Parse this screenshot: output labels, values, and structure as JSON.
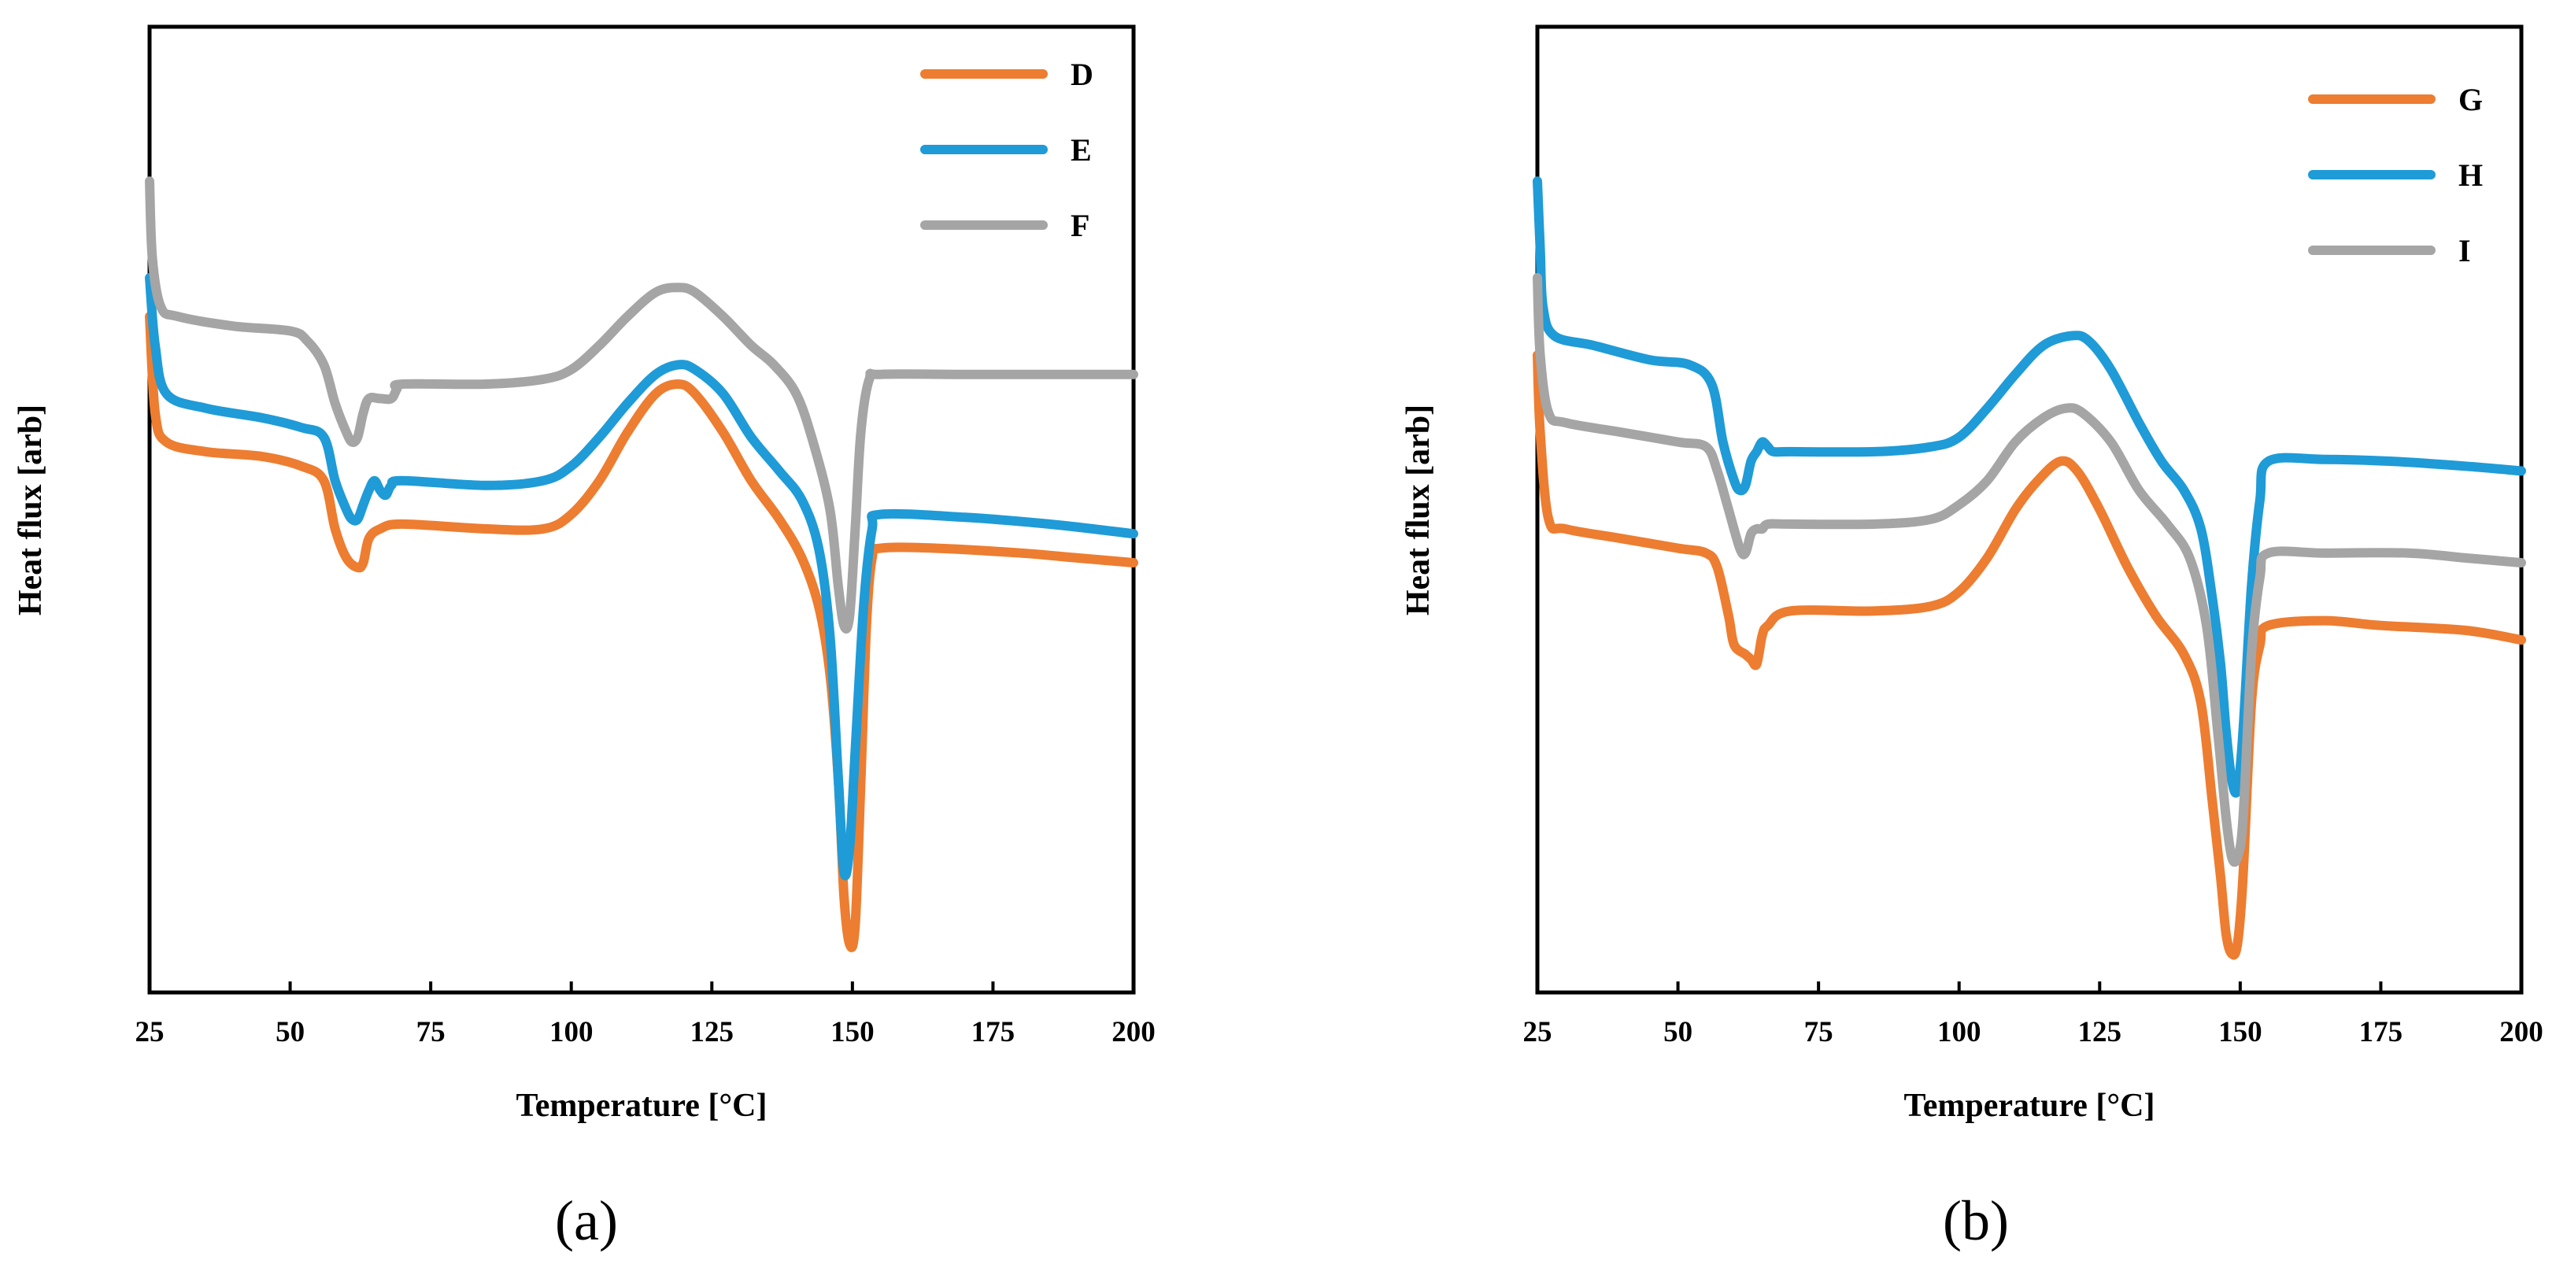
{
  "chart_data": [
    {
      "type": "line",
      "panel_label": "(a)",
      "xlabel": "Temperature [°C]",
      "ylabel": "Heat flux [arb]",
      "xlim": [
        25,
        200
      ],
      "ylim": [
        0,
        100
      ],
      "x_ticks": [
        25,
        50,
        75,
        100,
        125,
        150,
        175,
        200
      ],
      "x_tick_labels": [
        "25",
        "50",
        "75",
        "100",
        "125",
        "150",
        "175",
        "200"
      ],
      "y_ticks_shown": false,
      "grid": false,
      "legend_position": "top-right",
      "series": [
        {
          "name": "D",
          "color": "#ED7D31",
          "points": [
            [
              25,
              70
            ],
            [
              26,
              60
            ],
            [
              28,
              57
            ],
            [
              35,
              56
            ],
            [
              45,
              55.5
            ],
            [
              52,
              54.5
            ],
            [
              56,
              53
            ],
            [
              58,
              48
            ],
            [
              60,
              45
            ],
            [
              62,
              44
            ],
            [
              63,
              44.5
            ],
            [
              64,
              47
            ],
            [
              66,
              48
            ],
            [
              70,
              48.5
            ],
            [
              85,
              48
            ],
            [
              95,
              48
            ],
            [
              100,
              49.5
            ],
            [
              105,
              53
            ],
            [
              110,
              58
            ],
            [
              115,
              62
            ],
            [
              119,
              63
            ],
            [
              122,
              62
            ],
            [
              127,
              58
            ],
            [
              132,
              53
            ],
            [
              137,
              49
            ],
            [
              141,
              45
            ],
            [
              144,
              40
            ],
            [
              146,
              33
            ],
            [
              147.5,
              22
            ],
            [
              148.5,
              10
            ],
            [
              149.5,
              5
            ],
            [
              150.5,
              7
            ],
            [
              151.5,
              22
            ],
            [
              152.5,
              38
            ],
            [
              153.5,
              45
            ],
            [
              155,
              46
            ],
            [
              165,
              46
            ],
            [
              180,
              45.5
            ],
            [
              190,
              45
            ],
            [
              200,
              44.5
            ]
          ]
        },
        {
          "name": "E",
          "color": "#1F9BD7",
          "points": [
            [
              25,
              74
            ],
            [
              26,
              67
            ],
            [
              28,
              62
            ],
            [
              35,
              60.5
            ],
            [
              45,
              59.5
            ],
            [
              52,
              58.5
            ],
            [
              56,
              57.5
            ],
            [
              58,
              53
            ],
            [
              60,
              50
            ],
            [
              61,
              49
            ],
            [
              62,
              49
            ],
            [
              63,
              50.5
            ],
            [
              64,
              52
            ],
            [
              65,
              53
            ],
            [
              66,
              52
            ],
            [
              67,
              51.5
            ],
            [
              68,
              52.5
            ],
            [
              70,
              53
            ],
            [
              85,
              52.5
            ],
            [
              95,
              53
            ],
            [
              100,
              54.5
            ],
            [
              105,
              57.5
            ],
            [
              110,
              61
            ],
            [
              115,
              64
            ],
            [
              119,
              65
            ],
            [
              122,
              64.5
            ],
            [
              127,
              62
            ],
            [
              132,
              57.5
            ],
            [
              137,
              54
            ],
            [
              141,
              51
            ],
            [
              144,
              46
            ],
            [
              146,
              37
            ],
            [
              147.5,
              22
            ],
            [
              148.5,
              12.5
            ],
            [
              149.5,
              15
            ],
            [
              150.5,
              25
            ],
            [
              152,
              40
            ],
            [
              153.5,
              48
            ],
            [
              155,
              49.5
            ],
            [
              170,
              49.2
            ],
            [
              185,
              48.5
            ],
            [
              200,
              47.5
            ]
          ]
        },
        {
          "name": "F",
          "color": "#A5A5A5",
          "points": [
            [
              25,
              84
            ],
            [
              25.5,
              76
            ],
            [
              27,
              71
            ],
            [
              30,
              70
            ],
            [
              40,
              69
            ],
            [
              50,
              68.5
            ],
            [
              53,
              67.5
            ],
            [
              56,
              65
            ],
            [
              58,
              61
            ],
            [
              60,
              58
            ],
            [
              61,
              57
            ],
            [
              62,
              57.5
            ],
            [
              63,
              60
            ],
            [
              64,
              61.5
            ],
            [
              66,
              61.5
            ],
            [
              68,
              61.5
            ],
            [
              69,
              62.5
            ],
            [
              70,
              63
            ],
            [
              85,
              63
            ],
            [
              95,
              63.5
            ],
            [
              100,
              64.5
            ],
            [
              105,
              67
            ],
            [
              110,
              70
            ],
            [
              115,
              72.5
            ],
            [
              119,
              73
            ],
            [
              122,
              72.5
            ],
            [
              127,
              70
            ],
            [
              132,
              67
            ],
            [
              136,
              65
            ],
            [
              140,
              62
            ],
            [
              143,
              57
            ],
            [
              146,
              50
            ],
            [
              147.5,
              42
            ],
            [
              148.5,
              38
            ],
            [
              149.5,
              39
            ],
            [
              150.5,
              48
            ],
            [
              151.5,
              58
            ],
            [
              153,
              63.5
            ],
            [
              155,
              64
            ],
            [
              170,
              64
            ],
            [
              185,
              64
            ],
            [
              200,
              64
            ]
          ]
        }
      ]
    },
    {
      "type": "line",
      "panel_label": "(b)",
      "xlabel": "Temperature [°C]",
      "ylabel": "Heat flux [arb]",
      "xlim": [
        25,
        200
      ],
      "ylim": [
        0,
        100
      ],
      "x_ticks": [
        25,
        50,
        75,
        100,
        125,
        150,
        175,
        200
      ],
      "x_tick_labels": [
        "25",
        "50",
        "75",
        "100",
        "125",
        "150",
        "175",
        "200"
      ],
      "y_ticks_shown": false,
      "grid": false,
      "legend_position": "top-right",
      "series": [
        {
          "name": "G",
          "color": "#ED7D31",
          "points": [
            [
              25,
              66
            ],
            [
              25.5,
              58
            ],
            [
              27,
              49
            ],
            [
              30,
              48
            ],
            [
              40,
              47
            ],
            [
              50,
              46
            ],
            [
              55,
              45.5
            ],
            [
              57,
              44
            ],
            [
              59,
              39
            ],
            [
              60,
              36
            ],
            [
              62,
              35
            ],
            [
              63,
              34.5
            ],
            [
              64,
              34
            ],
            [
              65,
              37
            ],
            [
              66,
              38
            ],
            [
              70,
              39.5
            ],
            [
              85,
              39.5
            ],
            [
              95,
              40
            ],
            [
              100,
              41.5
            ],
            [
              105,
              45
            ],
            [
              110,
              50
            ],
            [
              114,
              53
            ],
            [
              118,
              55
            ],
            [
              121,
              54
            ],
            [
              125,
              50
            ],
            [
              130,
              44
            ],
            [
              135,
              39
            ],
            [
              140,
              35
            ],
            [
              143,
              30
            ],
            [
              145,
              20
            ],
            [
              146.5,
              12
            ],
            [
              147.5,
              6
            ],
            [
              148.5,
              4
            ],
            [
              149.5,
              5
            ],
            [
              150.5,
              12
            ],
            [
              152,
              30
            ],
            [
              153.5,
              36
            ],
            [
              155,
              38
            ],
            [
              165,
              38.5
            ],
            [
              175,
              38
            ],
            [
              190,
              37.5
            ],
            [
              200,
              36.5
            ]
          ]
        },
        {
          "name": "H",
          "color": "#1F9BD7",
          "points": [
            [
              25,
              84
            ],
            [
              25.5,
              77
            ],
            [
              26,
              71
            ],
            [
              28,
              68
            ],
            [
              35,
              67
            ],
            [
              45,
              65.5
            ],
            [
              52,
              65
            ],
            [
              56,
              63
            ],
            [
              58,
              57
            ],
            [
              60,
              53
            ],
            [
              61,
              52
            ],
            [
              62,
              52.5
            ],
            [
              63,
              55
            ],
            [
              64,
              56
            ],
            [
              65,
              57
            ],
            [
              66,
              56.5
            ],
            [
              67,
              56
            ],
            [
              70,
              56
            ],
            [
              85,
              56
            ],
            [
              95,
              56.5
            ],
            [
              100,
              57.5
            ],
            [
              105,
              60.5
            ],
            [
              110,
              64
            ],
            [
              115,
              67
            ],
            [
              120,
              68
            ],
            [
              123,
              67.5
            ],
            [
              127,
              64.5
            ],
            [
              132,
              59
            ],
            [
              136,
              55
            ],
            [
              140,
              52
            ],
            [
              143,
              48
            ],
            [
              145,
              41
            ],
            [
              146.5,
              34
            ],
            [
              147.5,
              27
            ],
            [
              148.5,
              22
            ],
            [
              149.5,
              21
            ],
            [
              150.5,
              27
            ],
            [
              152,
              42
            ],
            [
              153.5,
              51
            ],
            [
              155,
              55
            ],
            [
              165,
              55.2
            ],
            [
              177,
              55
            ],
            [
              190,
              54.5
            ],
            [
              200,
              54
            ]
          ]
        },
        {
          "name": "I",
          "color": "#A5A5A5",
          "points": [
            [
              25,
              74
            ],
            [
              25.5,
              66
            ],
            [
              27,
              60
            ],
            [
              30,
              59
            ],
            [
              40,
              58
            ],
            [
              50,
              57
            ],
            [
              55,
              56.5
            ],
            [
              57,
              54
            ],
            [
              59,
              50
            ],
            [
              61,
              46
            ],
            [
              62,
              45.5
            ],
            [
              63,
              47.5
            ],
            [
              64,
              48
            ],
            [
              65,
              48
            ],
            [
              66,
              48.5
            ],
            [
              70,
              48.5
            ],
            [
              85,
              48.5
            ],
            [
              95,
              49
            ],
            [
              100,
              50.5
            ],
            [
              105,
              53
            ],
            [
              110,
              57
            ],
            [
              115,
              59.5
            ],
            [
              119,
              60.5
            ],
            [
              122,
              60
            ],
            [
              127,
              57
            ],
            [
              132,
              52
            ],
            [
              137,
              48.5
            ],
            [
              141,
              45
            ],
            [
              144,
              38
            ],
            [
              146,
              27
            ],
            [
              147.5,
              18
            ],
            [
              148.5,
              14
            ],
            [
              149.5,
              14
            ],
            [
              150.5,
              18
            ],
            [
              152,
              35
            ],
            [
              153.5,
              43
            ],
            [
              155,
              45.5
            ],
            [
              165,
              45.5
            ],
            [
              180,
              45.5
            ],
            [
              190,
              45
            ],
            [
              200,
              44.5
            ]
          ]
        }
      ]
    }
  ]
}
